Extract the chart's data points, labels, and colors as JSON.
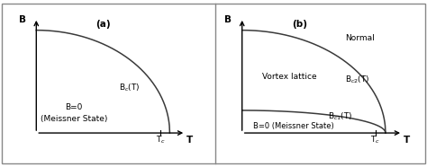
{
  "fig_width": 4.74,
  "fig_height": 1.86,
  "dpi": 100,
  "bg_color": "#ffffff",
  "curve_color": "#3a3a3a",
  "border_color": "#888888",
  "label_a": "(a)",
  "label_b": "(b)",
  "xlabel": "T",
  "ylabel": "B",
  "tc_label": "T$_c$",
  "Bc_label": "B$_c$(T)",
  "Bc1_label": "B$_{c1}$(T)",
  "Bc2_label": "B$_{c2}$(T)",
  "normal_label": "Normal",
  "vortex_label": "Vortex lattice",
  "meissner_a_line1": "B=0",
  "meissner_a_line2": "(Meissner State)",
  "meissner_b": "B=0 (Meissner State)",
  "font_size": 6.5,
  "font_size_label": 7.5,
  "font_size_axis": 7.5,
  "bc1_scale": 0.22
}
